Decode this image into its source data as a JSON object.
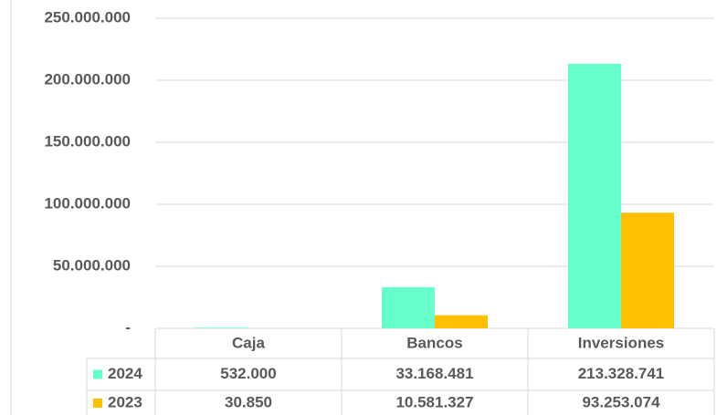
{
  "chart_data": {
    "type": "bar",
    "categories": [
      "Caja",
      "Bancos",
      "Inversiones"
    ],
    "series": [
      {
        "name": "2024",
        "color": "#66ffcc",
        "values": [
          532000,
          33168481,
          213328741
        ],
        "value_labels": [
          "532.000",
          "33.168.481",
          "213.328.741"
        ]
      },
      {
        "name": "2023",
        "color": "#ffc000",
        "values": [
          30850,
          10581327,
          93253074
        ],
        "value_labels": [
          "30.850",
          "10.581.327",
          "93.253.074"
        ]
      }
    ],
    "ylim": [
      0,
      250000000
    ],
    "yticks": [
      {
        "value": 0,
        "label": "-"
      },
      {
        "value": 50000000,
        "label": "50.000.000"
      },
      {
        "value": 100000000,
        "label": "100.000.000"
      },
      {
        "value": 150000000,
        "label": "150.000.000"
      },
      {
        "value": 200000000,
        "label": "200.000.000"
      },
      {
        "value": 250000000,
        "label": "250.000.000"
      }
    ],
    "grid": true,
    "legend": "table"
  }
}
